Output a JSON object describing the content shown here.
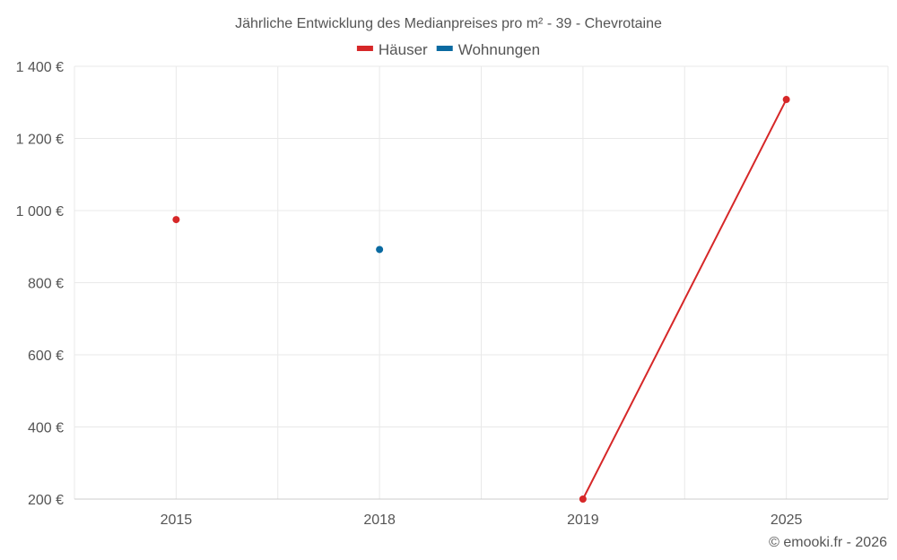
{
  "chart_data": {
    "type": "line",
    "title": "Jährliche Entwicklung des Medianpreises pro m² - 39 - Chevrotaine",
    "categories": [
      "2015",
      "2018",
      "2019",
      "2025"
    ],
    "ylim": [
      200,
      1400
    ],
    "yticks": [
      200,
      400,
      600,
      800,
      1000,
      1200,
      1400
    ],
    "ytick_labels": [
      "200 €",
      "400 €",
      "600 €",
      "800 €",
      "1 000 €",
      "1 200 €",
      "1 400 €"
    ],
    "xlabel": "",
    "ylabel": "",
    "legend_position": "top-center",
    "series": [
      {
        "name": "Häuser",
        "color": "#d62728",
        "values": [
          975,
          null,
          200,
          1308
        ]
      },
      {
        "name": "Wohnungen",
        "color": "#0a6aa1",
        "values": [
          null,
          892,
          null,
          null
        ]
      }
    ]
  },
  "credit": "© emooki.fr - 2026"
}
